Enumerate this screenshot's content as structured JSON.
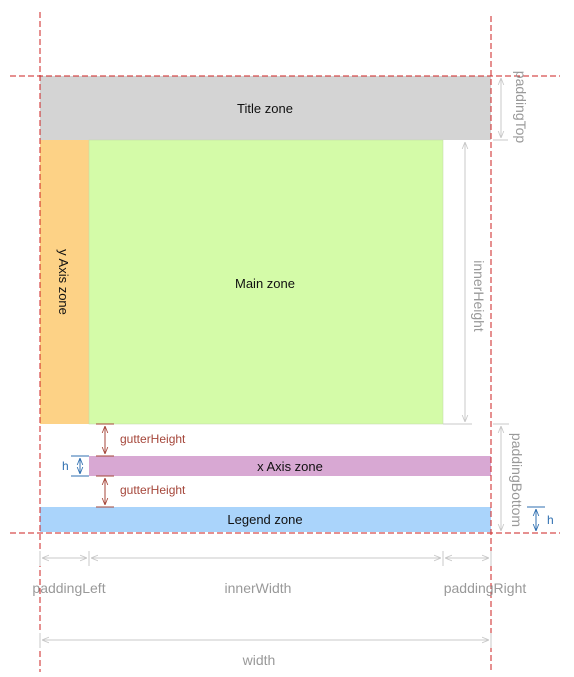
{
  "zones": {
    "title": "Title zone",
    "y_axis": "y Axis zone",
    "main": "Main zone",
    "x_axis": "x Axis zone",
    "legend": "Legend zone"
  },
  "dimensions": {
    "padding_top": "paddingTop",
    "inner_height": "innerHeight",
    "padding_bottom": "paddingBottom",
    "padding_left": "paddingLeft",
    "inner_width": "innerWidth",
    "padding_right": "paddingRight",
    "width": "width",
    "gutter_height": "gutterHeight",
    "h": "h"
  },
  "colors": {
    "title_zone": "#d4d4d4",
    "y_axis_zone": "#fdd286",
    "main_zone": "#d4fba8",
    "x_axis_zone": "#d8a8d3",
    "legend_zone": "#aad4fb",
    "boundary_lines": "#cc2222",
    "dimension_lines": "#c8c8c8",
    "gutter_arrows": "#a5463a",
    "h_arrows": "#2f6fb0"
  }
}
